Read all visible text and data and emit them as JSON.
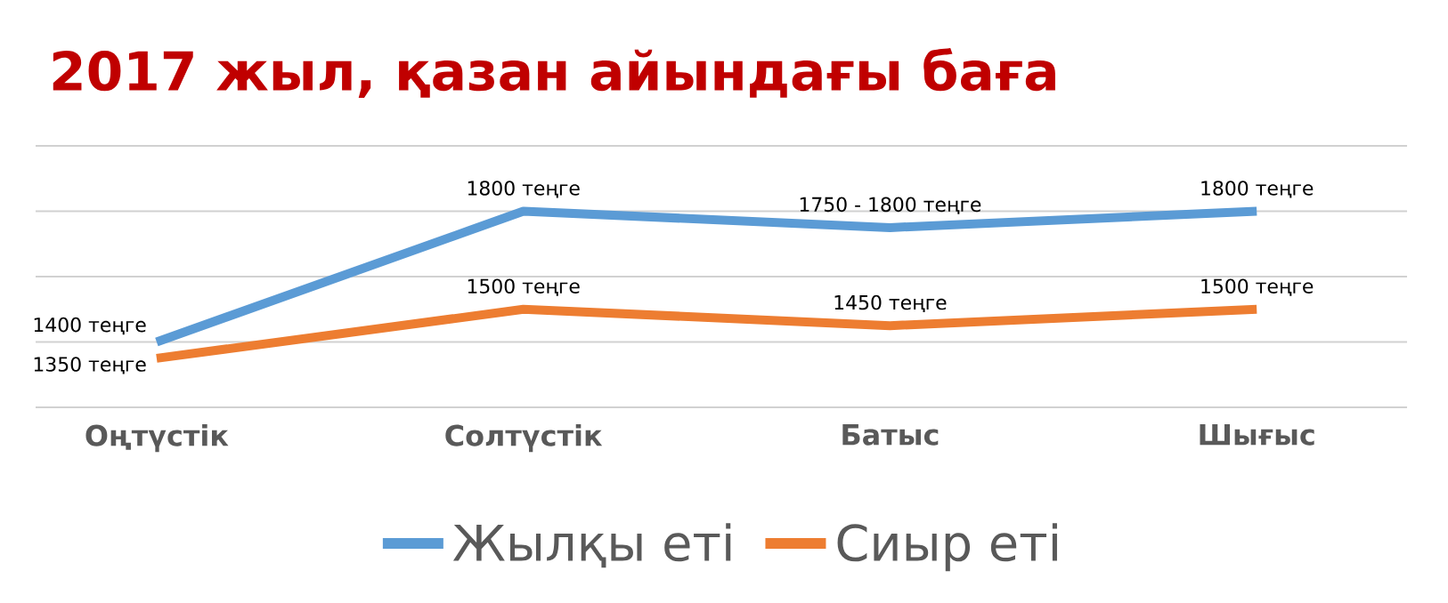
{
  "chart_data": {
    "type": "line",
    "title": "2017 жыл, қазан айындағы баға",
    "categories": [
      "Оңтүстік",
      "Солтүстік",
      "Батыс",
      "Шығыс"
    ],
    "series": [
      {
        "name": "Жылқы еті",
        "color": "#5b9bd5",
        "values": [
          1400,
          1800,
          1750,
          1800
        ],
        "value_labels": [
          "1400 теңге",
          "1800 теңге",
          "1750 - 1800 теңге",
          "1800 теңге"
        ]
      },
      {
        "name": "Сиыр еті",
        "color": "#ed7d31",
        "values": [
          1350,
          1500,
          1450,
          1500
        ],
        "value_labels": [
          "1350 теңге",
          "1500 теңге",
          "1450 теңге",
          "1500 теңге"
        ]
      }
    ],
    "ylim": [
      1200,
      2000
    ],
    "yticks": [
      {
        "value": 1200,
        "label": null
      },
      {
        "value": 1400,
        "label": null
      },
      {
        "value": 1600,
        "label": null
      },
      {
        "value": 1800,
        "label": null
      },
      {
        "value": 2000,
        "label": null
      }
    ],
    "grid": "y",
    "legend": "bottom",
    "tick_labels": "x"
  }
}
